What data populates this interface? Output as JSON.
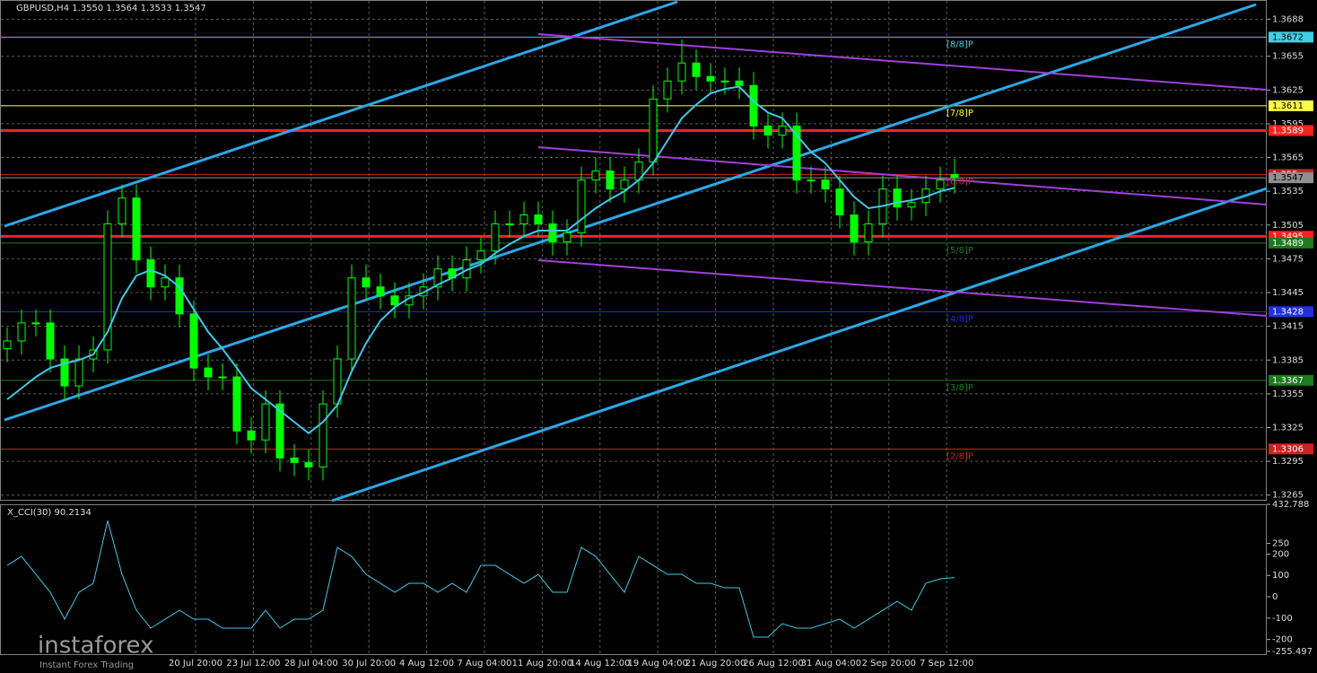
{
  "chart_data": [
    {
      "type": "candlestick",
      "title": "GBPUSD,H4  1.3550 1.3564 1.3533 1.3547",
      "open": [
        1.3395,
        1.3402,
        1.3418,
        1.3418,
        1.3386,
        1.3362,
        1.3386,
        1.3394,
        1.3506,
        1.3529,
        1.3474,
        1.345,
        1.3458,
        1.3426,
        1.3378,
        1.337,
        1.337,
        1.3322,
        1.3314,
        1.3346,
        1.3298,
        1.3294,
        1.329,
        1.3346,
        1.3386,
        1.3458,
        1.345,
        1.3442,
        1.3434,
        1.3442,
        1.345,
        1.3466,
        1.3458,
        1.3474,
        1.3482,
        1.3506,
        1.3506,
        1.3514,
        1.3506,
        1.349,
        1.3498,
        1.3545,
        1.3553,
        1.3537,
        1.3545,
        1.3561,
        1.3617,
        1.3633,
        1.3649,
        1.3637,
        1.3633,
        1.3633,
        1.3629,
        1.3593,
        1.3585,
        1.3593,
        1.3545,
        1.3545,
        1.3537,
        1.3514,
        1.349,
        1.3506,
        1.3537,
        1.3521,
        1.3525,
        1.3537,
        1.355
      ],
      "high": [
        1.3414,
        1.343,
        1.343,
        1.343,
        1.3398,
        1.3398,
        1.3406,
        1.3518,
        1.3541,
        1.3541,
        1.3486,
        1.347,
        1.347,
        1.3438,
        1.339,
        1.3382,
        1.3382,
        1.3334,
        1.3358,
        1.3358,
        1.331,
        1.3306,
        1.3358,
        1.3398,
        1.347,
        1.347,
        1.3462,
        1.3454,
        1.3454,
        1.3462,
        1.3478,
        1.3478,
        1.3486,
        1.3494,
        1.3518,
        1.3518,
        1.3526,
        1.3526,
        1.3518,
        1.351,
        1.3557,
        1.3565,
        1.3565,
        1.3557,
        1.3573,
        1.3629,
        1.3645,
        1.367,
        1.3661,
        1.3649,
        1.3645,
        1.3645,
        1.3641,
        1.3605,
        1.3605,
        1.3605,
        1.3557,
        1.3557,
        1.3549,
        1.3526,
        1.3518,
        1.3549,
        1.3549,
        1.3537,
        1.3549,
        1.3557,
        1.3564
      ],
      "low": [
        1.3383,
        1.339,
        1.3406,
        1.3374,
        1.335,
        1.335,
        1.3374,
        1.3382,
        1.3494,
        1.3462,
        1.3438,
        1.3438,
        1.3414,
        1.3366,
        1.3358,
        1.3358,
        1.331,
        1.3302,
        1.3302,
        1.3286,
        1.3282,
        1.3278,
        1.3278,
        1.3334,
        1.3374,
        1.3438,
        1.343,
        1.3422,
        1.3422,
        1.343,
        1.3438,
        1.3446,
        1.3446,
        1.3462,
        1.347,
        1.3494,
        1.3494,
        1.3494,
        1.3478,
        1.3478,
        1.3486,
        1.3533,
        1.3525,
        1.3525,
        1.3533,
        1.3549,
        1.3605,
        1.3621,
        1.3625,
        1.3621,
        1.3621,
        1.3617,
        1.3581,
        1.3573,
        1.3573,
        1.3533,
        1.3533,
        1.3525,
        1.3502,
        1.3478,
        1.3478,
        1.3494,
        1.3509,
        1.3509,
        1.3513,
        1.3525,
        1.3533
      ],
      "close": [
        1.3402,
        1.3418,
        1.3418,
        1.3386,
        1.3362,
        1.3386,
        1.3394,
        1.3506,
        1.3529,
        1.3474,
        1.345,
        1.3458,
        1.3426,
        1.3378,
        1.337,
        1.337,
        1.3322,
        1.3314,
        1.3346,
        1.3298,
        1.3294,
        1.329,
        1.3346,
        1.3386,
        1.3458,
        1.345,
        1.3442,
        1.3434,
        1.3442,
        1.345,
        1.3466,
        1.3458,
        1.3474,
        1.3482,
        1.3506,
        1.3506,
        1.3514,
        1.3506,
        1.349,
        1.3498,
        1.3545,
        1.3553,
        1.3537,
        1.3545,
        1.3561,
        1.3617,
        1.3633,
        1.3649,
        1.3637,
        1.3633,
        1.3633,
        1.3629,
        1.3593,
        1.3585,
        1.3593,
        1.3545,
        1.3545,
        1.3537,
        1.3514,
        1.349,
        1.3506,
        1.3537,
        1.3521,
        1.3525,
        1.3537,
        1.3545,
        1.3547
      ],
      "color": "#00ff00",
      "moving_average": {
        "color": "#40c8e8",
        "values": [
          1.335,
          1.336,
          1.337,
          1.3378,
          1.3382,
          1.3385,
          1.339,
          1.341,
          1.344,
          1.346,
          1.3465,
          1.346,
          1.345,
          1.343,
          1.341,
          1.3395,
          1.3378,
          1.336,
          1.335,
          1.334,
          1.333,
          1.332,
          1.333,
          1.3345,
          1.3375,
          1.34,
          1.342,
          1.3432,
          1.344,
          1.3445,
          1.3452,
          1.3458,
          1.3465,
          1.347,
          1.348,
          1.3488,
          1.3495,
          1.35,
          1.35,
          1.35,
          1.351,
          1.352,
          1.3528,
          1.3535,
          1.3545,
          1.356,
          1.358,
          1.36,
          1.3612,
          1.3622,
          1.3626,
          1.3628,
          1.3615,
          1.3605,
          1.36,
          1.3585,
          1.357,
          1.356,
          1.3545,
          1.353,
          1.352,
          1.3522,
          1.3525,
          1.3527,
          1.353,
          1.3535,
          1.3538
        ]
      },
      "ylim": [
        1.326,
        1.3705
      ],
      "yticks": [
        1.3688,
        1.3655,
        1.3625,
        1.3595,
        1.3565,
        1.3535,
        1.3505,
        1.3475,
        1.3445,
        1.3415,
        1.3385,
        1.3355,
        1.3325,
        1.3295,
        1.3265
      ],
      "grid": true,
      "levels": [
        {
          "price": 1.3672,
          "color": "#40d0e0",
          "label": "[8/8]P"
        },
        {
          "price": 1.3611,
          "color": "#ffff40",
          "label": "[7/8]P"
        },
        {
          "price": 1.3589,
          "color": "#ff2020"
        },
        {
          "price": 1.355,
          "color": "#d02020",
          "label": "[6/8]P"
        },
        {
          "price": 1.3547,
          "color": "#909090"
        },
        {
          "price": 1.3495,
          "color": "#ff2020"
        },
        {
          "price": 1.3489,
          "color": "#1e7a1e",
          "label": "[5/8]P"
        },
        {
          "price": 1.3428,
          "color": "#2030e0",
          "label": "[4/8]P"
        },
        {
          "price": 1.3367,
          "color": "#1e7a1e",
          "label": "[3/8]P"
        },
        {
          "price": 1.3306,
          "color": "#d02020",
          "label": "[2/8]P"
        }
      ]
    },
    {
      "type": "line",
      "title": "X_CCI(30) 90.2134",
      "color": "#40c8e8",
      "values": [
        147,
        189,
        105,
        21,
        -105,
        21,
        63,
        357,
        105,
        -63,
        -147,
        -105,
        -63,
        -105,
        -105,
        -147,
        -147,
        -147,
        -63,
        -147,
        -105,
        -105,
        -63,
        231,
        189,
        105,
        63,
        21,
        63,
        63,
        21,
        63,
        21,
        147,
        147,
        105,
        63,
        105,
        21,
        21,
        231,
        189,
        105,
        21,
        189,
        147,
        105,
        105,
        63,
        63,
        42,
        42,
        -189,
        -189,
        -126,
        -147,
        -147,
        -126,
        -105,
        -147,
        -105,
        -63,
        -21,
        -63,
        63,
        84,
        90.2134
      ],
      "ylim": [
        -273,
        433
      ],
      "yticks": [
        432.788,
        250,
        200,
        100,
        0,
        -100,
        -200,
        -255.497
      ]
    }
  ],
  "x_axis": {
    "labels": [
      "20 Jul 20:00",
      "23 Jul 12:00",
      "28 Jul 04:00",
      "30 Jul 20:00",
      "4 Aug 12:00",
      "7 Aug 04:00",
      "11 Aug 20:00",
      "14 Aug 12:00",
      "19 Aug 04:00",
      "21 Aug 20:00",
      "26 Aug 12:00",
      "31 Aug 04:00",
      "2 Sep 20:00",
      "7 Sep 12:00"
    ]
  },
  "watermark": {
    "brand": "instaforex",
    "tagline": "Instant Forex Trading"
  }
}
